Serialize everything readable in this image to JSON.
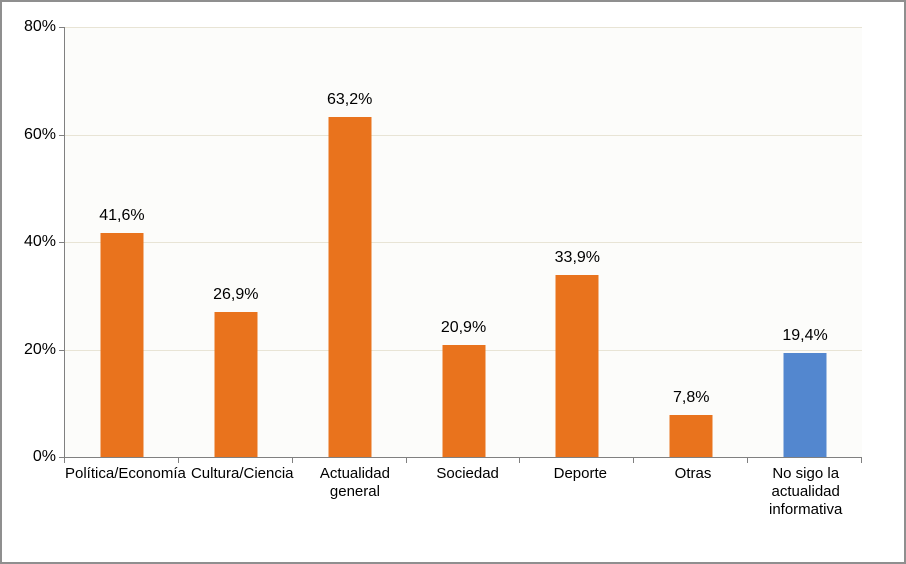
{
  "chart_data": {
    "type": "bar",
    "title": "",
    "categories": [
      "Política/Economía",
      "Cultura/Ciencia",
      "Actualidad\ngeneral",
      "Sociedad",
      "Deporte",
      "Otras",
      "No sigo la\nactualidad\ninformativa"
    ],
    "values": [
      41.6,
      26.9,
      63.2,
      20.9,
      33.9,
      7.8,
      19.4
    ],
    "value_labels": [
      "41,6%",
      "26,9%",
      "63,2%",
      "20,9%",
      "33,9%",
      "7,8%",
      "19,4%"
    ],
    "bar_colors": [
      "#E9731D",
      "#E9731D",
      "#E9731D",
      "#E9731D",
      "#E9731D",
      "#E9731D",
      "#5387CF"
    ],
    "ylim": [
      0,
      80
    ],
    "ytick_values": [
      0,
      20,
      40,
      60,
      80
    ],
    "ytick_labels": [
      "0%",
      "20%",
      "40%",
      "60%",
      "80%"
    ],
    "grid": "horizontal",
    "legend": "none",
    "xlabel": "",
    "ylabel": ""
  },
  "style": {
    "bar_color_main": "#E9731D",
    "bar_color_highlight": "#5387CF",
    "gridline_color": "#E8E4D5",
    "axis_color": "#808080",
    "outer_border_color": "#8F8F8F",
    "plot_background": "#FCFCFA",
    "text_color": "#000000"
  }
}
